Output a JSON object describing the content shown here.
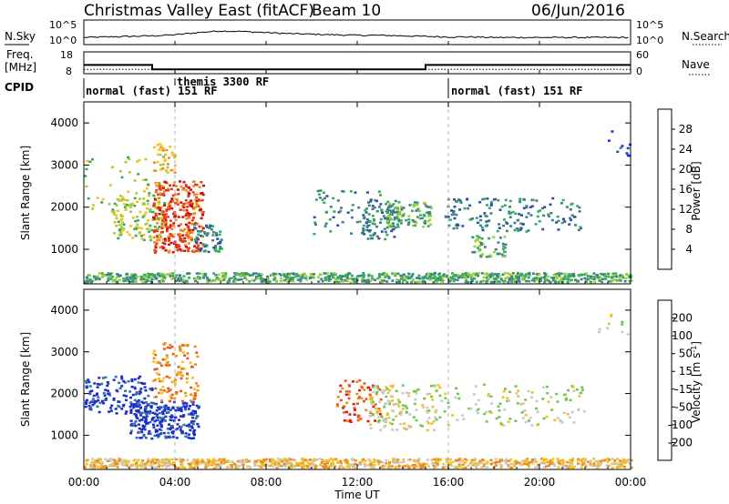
{
  "header": {
    "title": "Christmas Valley East (fitACF)",
    "beam": "Beam 10",
    "date": "06/Jun/2016"
  },
  "side_labels": {
    "nsky_line1": "N.Sky",
    "freq_line1": "Freq.",
    "freq_line2": "[MHz]",
    "cpid": "CPID",
    "nsearch": "N.Search",
    "nave": "Nave"
  },
  "colors": {
    "power_scale": [
      "#1a2fe0",
      "#2d4fa8",
      "#3d7f8a",
      "#3aa860",
      "#9fd03c",
      "#f2c021",
      "#f08a1a",
      "#e8381a",
      "#cc1010"
    ],
    "velocity_scale": [
      "#1b2fc8",
      "#3a6ea5",
      "#3d8a70",
      "#6bc84a",
      "#c8c8c8",
      "#f2c021",
      "#f08a1a",
      "#e85a1a",
      "#e81010"
    ]
  },
  "chart_data": [
    {
      "type": "line",
      "name": "noise-panel",
      "series": [
        {
          "name": "N.Sky",
          "values_log10": [
            0.3,
            0.4,
            0.5,
            0.6,
            0.8,
            1.2,
            1.5,
            1.4,
            1.2,
            1.0,
            0.9,
            0.8,
            0.7,
            0.7,
            0.6,
            0.5,
            0.4,
            0.4,
            0.3,
            0.3,
            0.3,
            0.3,
            0.3,
            0.3,
            0.3
          ]
        }
      ],
      "x": [
        0,
        1,
        2,
        3,
        4,
        5,
        6,
        7,
        8,
        9,
        10,
        11,
        12,
        13,
        14,
        15,
        16,
        17,
        18,
        19,
        20,
        21,
        22,
        23,
        24
      ],
      "left_ticks": [
        "10^5",
        "10^0"
      ],
      "right_ticks": [
        "10^5",
        "10^0"
      ]
    },
    {
      "type": "line",
      "name": "frequency-panel",
      "series": [
        {
          "name": "Freq.",
          "x": [
            0,
            3,
            3,
            15,
            15,
            24
          ],
          "values": [
            12,
            12,
            10,
            10,
            12,
            12
          ]
        },
        {
          "name": "Nave",
          "x": [
            0,
            24
          ],
          "values": [
            10,
            10
          ]
        }
      ],
      "left_ticks": [
        "18",
        "8"
      ],
      "right_ticks": [
        "60",
        "0"
      ],
      "ylim": [
        8,
        18
      ]
    },
    {
      "type": "table",
      "name": "cpid-strip",
      "segments": [
        {
          "label": "normal (fast) 151 RF",
          "start": 0,
          "end": 16
        },
        {
          "label": "themis 3300 RF",
          "start": 4,
          "end": 16
        },
        {
          "label": "normal (fast) 151 RF",
          "start": 16,
          "end": 24
        }
      ]
    },
    {
      "type": "heatmap",
      "name": "power-panel",
      "ylabel": "Slant Range [km]",
      "cbar_label": "Power [dB]",
      "y_ticks": [
        1000,
        2000,
        3000,
        4000
      ],
      "ylim": [
        180,
        4500
      ],
      "cbar_ticks": [
        4,
        8,
        12,
        16,
        20,
        24,
        28
      ],
      "cbar_range": [
        0,
        32
      ],
      "clusters": [
        {
          "x": 0.0,
          "x2": 24.0,
          "y": 200,
          "y2": 420,
          "c": 3,
          "n": 900
        },
        {
          "x": 0.0,
          "x2": 3.5,
          "y": 1800,
          "y2": 3200,
          "c": 4,
          "n": 60
        },
        {
          "x": 1.2,
          "x2": 3.5,
          "y": 1200,
          "y2": 2200,
          "c": 4,
          "n": 120
        },
        {
          "x": 3.0,
          "x2": 5.2,
          "y": 900,
          "y2": 2600,
          "c": 7,
          "n": 320
        },
        {
          "x": 3.0,
          "x2": 4.0,
          "y": 2800,
          "y2": 3500,
          "c": 5,
          "n": 40
        },
        {
          "x": 4.8,
          "x2": 6.0,
          "y": 900,
          "y2": 1600,
          "c": 2,
          "n": 60
        },
        {
          "x": 10.0,
          "x2": 13.0,
          "y": 1300,
          "y2": 2400,
          "c": 2,
          "n": 60
        },
        {
          "x": 12.2,
          "x2": 13.8,
          "y": 1200,
          "y2": 2200,
          "c": 2,
          "n": 80
        },
        {
          "x": 13.2,
          "x2": 15.2,
          "y": 1500,
          "y2": 2100,
          "c": 3,
          "n": 100
        },
        {
          "x": 15.8,
          "x2": 21.8,
          "y": 1400,
          "y2": 2200,
          "c": 2,
          "n": 160
        },
        {
          "x": 17.0,
          "x2": 18.5,
          "y": 800,
          "y2": 1300,
          "c": 3,
          "n": 50
        },
        {
          "x": 22.5,
          "x2": 24.0,
          "y": 3200,
          "y2": 3800,
          "c": 1,
          "n": 10
        }
      ]
    },
    {
      "type": "heatmap",
      "name": "velocity-panel",
      "ylabel": "Slant Range [km]",
      "cbar_label": "Velocity [m s^-1]",
      "y_ticks": [
        1000,
        2000,
        3000,
        4000
      ],
      "ylim": [
        180,
        4500
      ],
      "cbar_ticks": [
        200,
        100,
        50,
        15,
        -15,
        -50,
        -100,
        -200
      ],
      "clusters": [
        {
          "x": 0.0,
          "x2": 24.0,
          "y": 200,
          "y2": 420,
          "c": 5,
          "n": 900
        },
        {
          "x": 0.0,
          "x2": 3.0,
          "y": 1500,
          "y2": 2400,
          "c": 0,
          "n": 140
        },
        {
          "x": 2.0,
          "x2": 5.0,
          "y": 900,
          "y2": 1800,
          "c": 0,
          "n": 260
        },
        {
          "x": 3.0,
          "x2": 5.0,
          "y": 1800,
          "y2": 3200,
          "c": 6,
          "n": 120
        },
        {
          "x": 11.0,
          "x2": 13.0,
          "y": 1300,
          "y2": 2300,
          "c": 7,
          "n": 70
        },
        {
          "x": 12.5,
          "x2": 15.5,
          "y": 1100,
          "y2": 2200,
          "c": 4,
          "n": 140
        },
        {
          "x": 15.5,
          "x2": 22.0,
          "y": 1200,
          "y2": 2200,
          "c": 4,
          "n": 120
        },
        {
          "x": 22.5,
          "x2": 24.0,
          "y": 3400,
          "y2": 3900,
          "c": 4,
          "n": 10
        }
      ]
    }
  ],
  "x_axis": {
    "label": "Time UT",
    "ticks": [
      "00:00",
      "04:00",
      "08:00",
      "12:00",
      "16:00",
      "20:00",
      "00:00"
    ]
  }
}
